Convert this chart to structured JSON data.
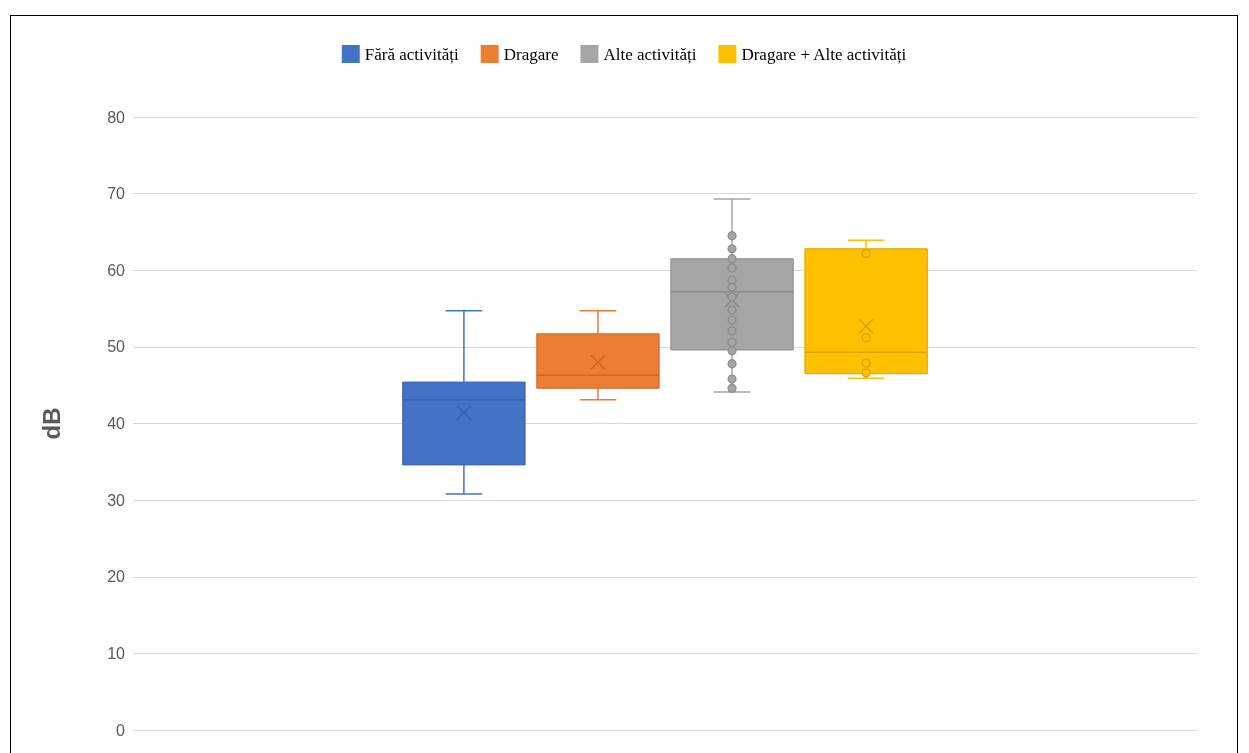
{
  "chart_data": {
    "type": "box",
    "ylabel": "dB",
    "categories": [
      null
    ],
    "ylim": [
      0,
      80
    ],
    "yticks": [
      0,
      10,
      20,
      30,
      40,
      50,
      60,
      70,
      80
    ],
    "grid": "y",
    "legend": "top",
    "marker": "circle",
    "series": [
      {
        "name": "Fără activități",
        "color": "#4472c4",
        "boxes": [
          {
            "low": 30.8,
            "q1": 34.6,
            "median": 43.1,
            "q3": 45.4,
            "high": 54.7,
            "mean": 41.4
          }
        ]
      },
      {
        "name": "Dragare",
        "color": "#ed7d31",
        "boxes": [
          {
            "low": 43.1,
            "q1": 44.6,
            "median": 46.3,
            "q3": 51.7,
            "high": 54.7,
            "mean": 48.0
          }
        ]
      },
      {
        "name": "Alte activități",
        "color": "#a5a5a5",
        "boxes": [
          {
            "low": 44.1,
            "q1": 49.6,
            "median": 57.2,
            "q3": 61.5,
            "high": 69.3,
            "mean": 56.1,
            "outliers": [
              64.5,
              62.8,
              61.5,
              60.3,
              58.7,
              57.8,
              56.5,
              54.8,
              53.5,
              52.1,
              50.6,
              49.5,
              47.8,
              45.8,
              44.6
            ]
          }
        ]
      },
      {
        "name": "Dragare + Alte activități",
        "color": "#ffc000",
        "boxes": [
          {
            "low": 45.9,
            "q1": 46.5,
            "median": 49.3,
            "q3": 62.8,
            "high": 63.9,
            "mean": 52.7,
            "outliers": [
              62.2,
              51.2,
              47.9,
              46.6
            ]
          }
        ]
      }
    ]
  }
}
